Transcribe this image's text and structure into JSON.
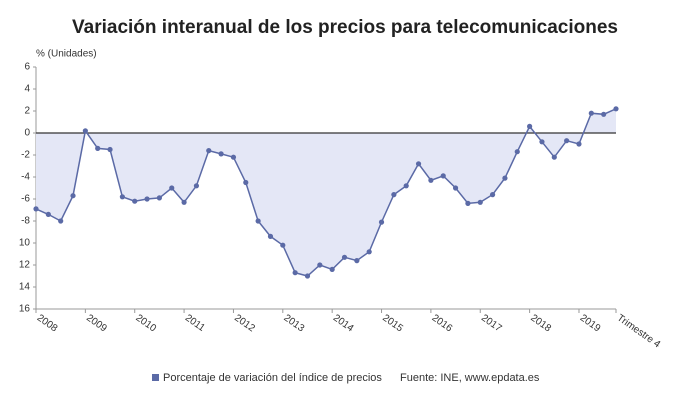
{
  "chart_data": {
    "type": "line",
    "title": "Variación interanual de los precios para telecomunicaciones",
    "y_label": "% (Unidades)",
    "source": "Fuente: INE, www.epdata.es",
    "categories": [
      "2008",
      null,
      null,
      null,
      "2009",
      null,
      null,
      null,
      "2010",
      null,
      null,
      null,
      "2011",
      null,
      null,
      null,
      "2012",
      null,
      null,
      null,
      "2013",
      null,
      null,
      null,
      "2014",
      null,
      null,
      null,
      "2015",
      null,
      null,
      null,
      "2016",
      null,
      null,
      null,
      "2017",
      null,
      null,
      null,
      "2018",
      null,
      null,
      null,
      "2019",
      null,
      null,
      "Trimestre 4"
    ],
    "series": [
      {
        "name": "Porcentaje de variación del índice de precios",
        "color": "#5b6aa6",
        "values": [
          -6.9,
          -7.4,
          -8.0,
          -5.7,
          0.2,
          -1.4,
          -1.5,
          -5.8,
          -6.2,
          -6.0,
          -5.9,
          -5.0,
          -6.3,
          -4.8,
          -1.6,
          -1.9,
          -2.2,
          -4.5,
          -8.0,
          -9.4,
          -10.2,
          -12.7,
          -13.0,
          -12.0,
          -12.4,
          -11.3,
          -11.6,
          -10.8,
          -8.1,
          -5.6,
          -4.8,
          -2.8,
          -4.3,
          -3.9,
          -5.0,
          -6.4,
          -6.3,
          -5.6,
          -4.1,
          -1.7,
          0.6,
          -0.8,
          -2.2,
          -0.7,
          -1.0,
          1.8,
          1.7,
          2.2
        ]
      }
    ],
    "ylim": [
      -16,
      6
    ],
    "yticks": [
      6,
      4,
      2,
      0,
      -2,
      -4,
      -6,
      -8,
      {
        "value": -10,
        "label": "10"
      },
      {
        "value": -12,
        "label": "12"
      },
      {
        "value": -14,
        "label": "14"
      },
      {
        "value": -16,
        "label": "16"
      }
    ],
    "area_fill": "#e4e7f6"
  }
}
